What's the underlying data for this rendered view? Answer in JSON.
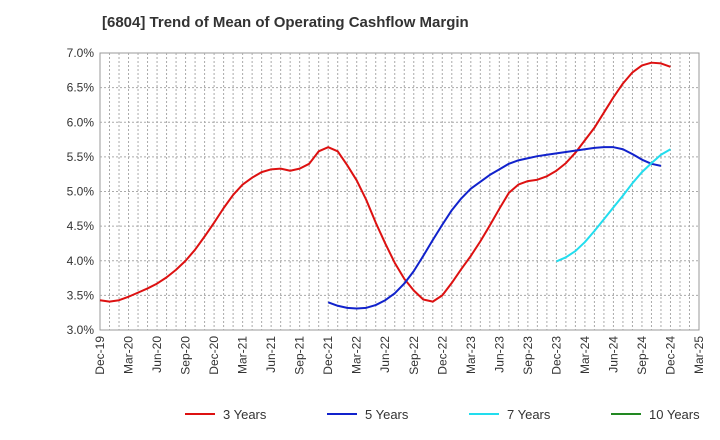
{
  "chart_data": {
    "type": "line",
    "title": "[6804]  Trend of Mean of Operating Cashflow Margin",
    "xlabel": "",
    "ylabel": "",
    "ylim": [
      3.0,
      7.0
    ],
    "y_ticks": [
      "3.0%",
      "3.5%",
      "4.0%",
      "4.5%",
      "5.0%",
      "5.5%",
      "6.0%",
      "6.5%",
      "7.0%"
    ],
    "x_ticks": [
      "Dec-19",
      "Mar-20",
      "Jun-20",
      "Sep-20",
      "Dec-20",
      "Mar-21",
      "Jun-21",
      "Sep-21",
      "Dec-21",
      "Mar-22",
      "Jun-22",
      "Sep-22",
      "Dec-22",
      "Mar-23",
      "Jun-23",
      "Sep-23",
      "Dec-23",
      "Mar-24",
      "Jun-24",
      "Sep-24",
      "Dec-24",
      "Mar-25"
    ],
    "grid": true,
    "legend_position": "bottom",
    "series": [
      {
        "name": "3 Years",
        "color": "#dd1111",
        "start": "Dec-19",
        "values": [
          3.43,
          3.41,
          3.43,
          3.48,
          3.54,
          3.6,
          3.67,
          3.76,
          3.87,
          4.0,
          4.16,
          4.35,
          4.55,
          4.76,
          4.95,
          5.1,
          5.2,
          5.28,
          5.32,
          5.33,
          5.3,
          5.33,
          5.4,
          5.58,
          5.64,
          5.58,
          5.38,
          5.16,
          4.88,
          4.55,
          4.25,
          3.97,
          3.74,
          3.57,
          3.44,
          3.41,
          3.5,
          3.68,
          3.88,
          4.07,
          4.28,
          4.51,
          4.75,
          4.98,
          5.1,
          5.15,
          5.17,
          5.22,
          5.3,
          5.41,
          5.56,
          5.74,
          5.92,
          6.14,
          6.36,
          6.56,
          6.72,
          6.82,
          6.86,
          6.85,
          6.8
        ]
      },
      {
        "name": "5 Years",
        "color": "#1122cc",
        "start": "Dec-21",
        "values": [
          3.4,
          3.35,
          3.32,
          3.31,
          3.32,
          3.36,
          3.43,
          3.53,
          3.67,
          3.85,
          4.07,
          4.3,
          4.52,
          4.73,
          4.9,
          5.04,
          5.14,
          5.24,
          5.32,
          5.4,
          5.45,
          5.48,
          5.51,
          5.53,
          5.55,
          5.57,
          5.59,
          5.61,
          5.63,
          5.64,
          5.64,
          5.61,
          5.54,
          5.46,
          5.4,
          5.37
        ]
      },
      {
        "name": "7 Years",
        "color": "#22ddee",
        "start": "Dec-23",
        "values": [
          3.99,
          4.05,
          4.14,
          4.27,
          4.43,
          4.6,
          4.77,
          4.94,
          5.12,
          5.28,
          5.41,
          5.53,
          5.61
        ]
      },
      {
        "name": "10 Years",
        "color": "#228822",
        "start": "Dec-24",
        "values": []
      }
    ]
  }
}
